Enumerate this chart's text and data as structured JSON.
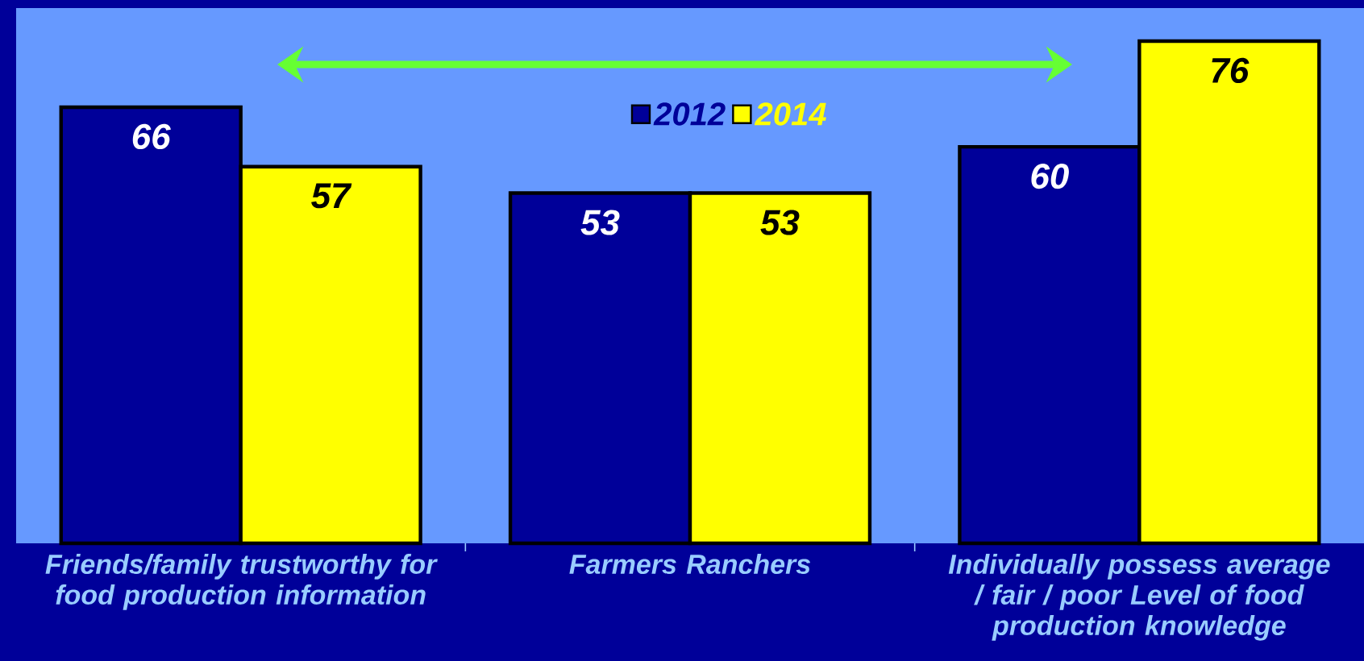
{
  "chart_data": {
    "type": "bar",
    "categories": [
      "Friends/family trustworthy for food production information",
      "Farmers Ranchers",
      "Individually possess average / fair / poor Level of food production knowledge"
    ],
    "series": [
      {
        "name": "2012",
        "color": "#000099",
        "values": [
          66,
          53,
          60
        ]
      },
      {
        "name": "2014",
        "color": "#ffff00",
        "values": [
          57,
          53,
          76
        ]
      }
    ],
    "ylim": [
      0,
      81
    ],
    "tick_labels": "x",
    "data_labels": true,
    "legend": "top"
  }
}
